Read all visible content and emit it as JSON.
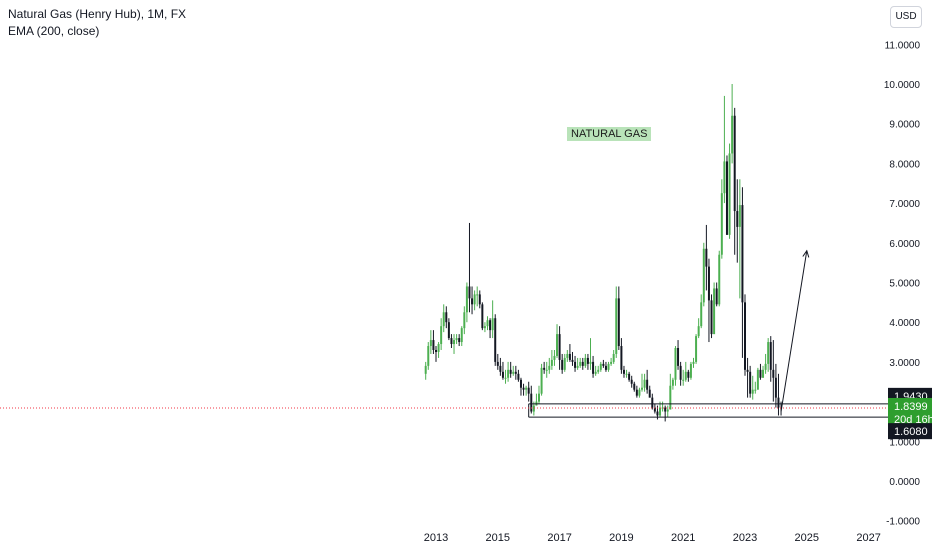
{
  "header": {
    "title": "Natural Gas (Henry Hub), 1M, FX",
    "indicator": "EMA (200, close)"
  },
  "currency": "USD",
  "annotation": "NATURAL GAS",
  "price_labels": {
    "upper_level": "1.9430",
    "current_price": "1.8399",
    "countdown": "20d 16h",
    "lower_level": "1.6080"
  },
  "colors": {
    "up": "#4caf50",
    "down": "#131722",
    "current_price_bg": "#2e9e2e",
    "level_bg": "#131722",
    "price_line": "#f23645"
  },
  "chart_data": {
    "type": "candlestick",
    "series": [
      {
        "name": "Natural Gas (Henry Hub)",
        "x": [
          "2012-09",
          "2012-10",
          "2012-11",
          "2012-12",
          "2013-01",
          "2013-02",
          "2013-03",
          "2013-04",
          "2013-05",
          "2013-06",
          "2013-07",
          "2013-08",
          "2013-09",
          "2013-10",
          "2013-11",
          "2013-12",
          "2014-01",
          "2014-02",
          "2014-03",
          "2014-04",
          "2014-05",
          "2014-06",
          "2014-07",
          "2014-08",
          "2014-09",
          "2014-10",
          "2014-11",
          "2014-12",
          "2015-01",
          "2015-02",
          "2015-03",
          "2015-04",
          "2015-05",
          "2015-06",
          "2015-07",
          "2015-08",
          "2015-09",
          "2015-10",
          "2015-11",
          "2015-12",
          "2016-01",
          "2016-02",
          "2016-03",
          "2016-04",
          "2016-05",
          "2016-06",
          "2016-07",
          "2016-08",
          "2016-09",
          "2016-10",
          "2016-11",
          "2016-12",
          "2017-01",
          "2017-02",
          "2017-03",
          "2017-04",
          "2017-05",
          "2017-06",
          "2017-07",
          "2017-08",
          "2017-09",
          "2017-10",
          "2017-11",
          "2017-12",
          "2018-01",
          "2018-02",
          "2018-03",
          "2018-04",
          "2018-05",
          "2018-06",
          "2018-07",
          "2018-08",
          "2018-09",
          "2018-10",
          "2018-11",
          "2018-12",
          "2019-01",
          "2019-02",
          "2019-03",
          "2019-04",
          "2019-05",
          "2019-06",
          "2019-07",
          "2019-08",
          "2019-09",
          "2019-10",
          "2019-11",
          "2019-12",
          "2020-01",
          "2020-02",
          "2020-03",
          "2020-04",
          "2020-05",
          "2020-06",
          "2020-07",
          "2020-08",
          "2020-09",
          "2020-10",
          "2020-11",
          "2020-12",
          "2021-01",
          "2021-02",
          "2021-03",
          "2021-04",
          "2021-05",
          "2021-06",
          "2021-07",
          "2021-08",
          "2021-09",
          "2021-10",
          "2021-11",
          "2021-12",
          "2022-01",
          "2022-02",
          "2022-03",
          "2022-04",
          "2022-05",
          "2022-06",
          "2022-07",
          "2022-08",
          "2022-09",
          "2022-10",
          "2022-11",
          "2022-12",
          "2023-01",
          "2023-02",
          "2023-03",
          "2023-04",
          "2023-05",
          "2023-06",
          "2023-07",
          "2023-08",
          "2023-09",
          "2023-10",
          "2023-11",
          "2023-12",
          "2024-01",
          "2024-02",
          "2024-03"
        ],
        "open": [
          2.7,
          2.9,
          3.4,
          3.55,
          3.3,
          3.25,
          3.45,
          3.9,
          4.25,
          4.0,
          3.6,
          3.45,
          3.55,
          3.6,
          3.5,
          3.85,
          4.25,
          4.9,
          4.6,
          4.45,
          4.7,
          4.7,
          4.45,
          3.85,
          3.9,
          4.05,
          3.8,
          4.1,
          3.0,
          2.9,
          2.75,
          2.6,
          2.6,
          2.8,
          2.7,
          2.75,
          2.7,
          2.55,
          2.35,
          2.3,
          2.35,
          2.2,
          1.75,
          1.9,
          2.0,
          2.2,
          2.85,
          2.8,
          2.8,
          2.9,
          3.05,
          3.15,
          3.7,
          3.05,
          2.8,
          3.1,
          3.2,
          3.05,
          3.0,
          2.85,
          2.9,
          3.0,
          2.9,
          3.1,
          2.95,
          3.0,
          2.7,
          2.75,
          2.8,
          2.95,
          2.9,
          2.8,
          2.95,
          3.0,
          3.2,
          4.6,
          3.4,
          2.8,
          2.7,
          2.7,
          2.55,
          2.45,
          2.3,
          2.15,
          2.3,
          2.35,
          2.55,
          2.3,
          2.1,
          1.85,
          1.75,
          1.65,
          1.85,
          1.85,
          1.75,
          1.8,
          2.4,
          2.55,
          3.35,
          2.9,
          2.55,
          2.55,
          2.75,
          2.6,
          2.95,
          3.0,
          3.65,
          3.9,
          4.5,
          5.85,
          5.4,
          4.55,
          3.7,
          4.85,
          4.45,
          5.7,
          7.25,
          8.05,
          6.2,
          8.25,
          9.2,
          6.8,
          6.4,
          6.95,
          4.5,
          2.8,
          2.75,
          2.2,
          2.3,
          2.3,
          2.8,
          2.6,
          2.8,
          2.95,
          3.5,
          2.8,
          2.6,
          2.1,
          1.85
        ],
        "high": [
          3.0,
          3.5,
          3.8,
          3.8,
          3.4,
          3.5,
          4.1,
          4.45,
          4.4,
          4.1,
          3.7,
          3.7,
          3.7,
          3.7,
          3.9,
          4.4,
          5.0,
          6.5,
          4.9,
          4.8,
          4.9,
          4.8,
          4.5,
          4.0,
          4.15,
          4.1,
          4.55,
          4.2,
          3.2,
          3.1,
          3.0,
          2.8,
          3.0,
          3.0,
          2.9,
          2.9,
          2.8,
          2.6,
          2.45,
          2.4,
          2.5,
          2.4,
          2.0,
          2.2,
          2.4,
          2.95,
          3.0,
          3.0,
          3.1,
          3.3,
          3.3,
          3.95,
          3.9,
          3.2,
          3.2,
          3.3,
          3.45,
          3.25,
          3.15,
          3.1,
          3.1,
          3.1,
          3.2,
          3.2,
          3.6,
          3.15,
          2.9,
          2.9,
          3.0,
          3.05,
          3.0,
          3.0,
          3.1,
          3.3,
          4.9,
          4.9,
          3.6,
          2.9,
          2.8,
          2.75,
          2.65,
          2.5,
          2.4,
          2.35,
          2.7,
          2.7,
          2.8,
          2.4,
          2.2,
          1.95,
          1.9,
          2.0,
          2.0,
          1.9,
          1.9,
          2.7,
          2.6,
          3.4,
          3.55,
          3.0,
          2.8,
          3.0,
          2.8,
          3.0,
          3.1,
          3.7,
          4.1,
          4.7,
          6.0,
          6.45,
          5.6,
          4.7,
          5.0,
          5.0,
          5.8,
          7.6,
          9.7,
          8.2,
          8.5,
          10.0,
          9.4,
          7.6,
          7.6,
          7.4,
          4.7,
          3.1,
          2.9,
          2.65,
          2.5,
          2.85,
          2.95,
          2.9,
          3.2,
          3.6,
          3.65,
          3.55,
          2.95,
          2.7,
          2.0
        ],
        "low": [
          2.55,
          2.8,
          3.2,
          3.2,
          3.0,
          3.1,
          3.3,
          3.75,
          3.85,
          3.55,
          3.35,
          3.2,
          3.45,
          3.4,
          3.4,
          3.7,
          4.0,
          4.25,
          4.2,
          4.3,
          4.4,
          4.35,
          3.8,
          3.75,
          3.8,
          3.6,
          3.6,
          2.9,
          2.8,
          2.65,
          2.55,
          2.45,
          2.5,
          2.6,
          2.65,
          2.55,
          2.5,
          2.15,
          2.15,
          2.15,
          2.0,
          1.7,
          1.65,
          1.9,
          1.95,
          2.15,
          2.7,
          2.6,
          2.7,
          2.8,
          2.9,
          3.1,
          2.8,
          2.7,
          2.75,
          3.0,
          3.0,
          2.9,
          2.75,
          2.8,
          2.85,
          2.8,
          2.85,
          2.8,
          2.8,
          2.6,
          2.65,
          2.7,
          2.75,
          2.85,
          2.75,
          2.75,
          2.9,
          2.95,
          3.1,
          3.3,
          2.7,
          2.6,
          2.6,
          2.5,
          2.35,
          2.25,
          2.1,
          2.1,
          2.25,
          2.25,
          2.2,
          2.1,
          1.8,
          1.7,
          1.55,
          1.6,
          1.75,
          1.5,
          1.6,
          1.8,
          2.3,
          2.4,
          2.8,
          2.4,
          2.4,
          2.5,
          2.5,
          2.55,
          2.85,
          2.95,
          3.6,
          3.85,
          4.4,
          4.8,
          3.5,
          3.6,
          3.7,
          4.4,
          4.4,
          5.6,
          7.0,
          6.2,
          6.1,
          8.0,
          5.7,
          5.5,
          4.6,
          3.1,
          2.65,
          2.1,
          2.1,
          2.05,
          2.2,
          2.3,
          2.55,
          2.6,
          2.7,
          2.75,
          2.5,
          2.0,
          1.85,
          1.65,
          1.65
        ],
        "close": [
          2.9,
          3.4,
          3.55,
          3.3,
          3.25,
          3.45,
          3.9,
          4.25,
          4.0,
          3.6,
          3.45,
          3.55,
          3.6,
          3.5,
          3.85,
          4.25,
          4.9,
          4.6,
          4.45,
          4.7,
          4.7,
          4.45,
          3.85,
          3.9,
          4.05,
          3.8,
          4.1,
          3.0,
          2.9,
          2.75,
          2.6,
          2.6,
          2.8,
          2.7,
          2.75,
          2.7,
          2.55,
          2.35,
          2.3,
          2.35,
          2.2,
          1.75,
          1.9,
          2.0,
          2.2,
          2.85,
          2.8,
          2.8,
          2.9,
          3.05,
          3.15,
          3.7,
          3.05,
          2.8,
          3.1,
          3.2,
          3.05,
          3.0,
          2.85,
          2.9,
          3.0,
          2.9,
          3.1,
          2.95,
          3.0,
          2.7,
          2.75,
          2.8,
          2.95,
          2.9,
          2.8,
          2.95,
          3.0,
          3.2,
          4.6,
          3.4,
          2.8,
          2.7,
          2.7,
          2.55,
          2.45,
          2.3,
          2.15,
          2.3,
          2.35,
          2.55,
          2.3,
          2.1,
          1.85,
          1.75,
          1.65,
          1.85,
          1.85,
          1.75,
          1.8,
          2.4,
          2.55,
          3.35,
          2.9,
          2.55,
          2.55,
          2.75,
          2.6,
          2.95,
          3.0,
          3.65,
          3.9,
          4.5,
          5.85,
          5.4,
          4.55,
          3.7,
          4.85,
          4.45,
          5.7,
          7.25,
          8.05,
          6.2,
          8.25,
          9.2,
          6.8,
          6.4,
          6.95,
          4.5,
          2.8,
          2.75,
          2.2,
          2.3,
          2.3,
          2.8,
          2.6,
          2.8,
          2.95,
          3.5,
          2.8,
          2.6,
          2.1,
          1.85,
          1.84
        ]
      }
    ],
    "y_axis": {
      "min": -1.0,
      "max": 11.0,
      "tick_labels": [
        "-1.0000",
        "0.0000",
        "1.0000",
        "2.0000",
        "3.0000",
        "4.0000",
        "5.0000",
        "6.0000",
        "7.0000",
        "8.0000",
        "9.0000",
        "10.0000",
        "11.0000"
      ],
      "ticks": [
        -1,
        0,
        1,
        2,
        3,
        4,
        5,
        6,
        7,
        8,
        9,
        10,
        11
      ]
    },
    "x_axis": {
      "tick_labels": [
        "2013",
        "2015",
        "2017",
        "2019",
        "2021",
        "2023",
        "2025",
        "2027"
      ]
    },
    "levels": [
      1.943,
      1.608
    ],
    "current_price": 1.8399,
    "arrow": {
      "from": [
        "2024-03",
        1.75
      ],
      "to": [
        "2025-01",
        5.8
      ]
    },
    "grid": false
  }
}
